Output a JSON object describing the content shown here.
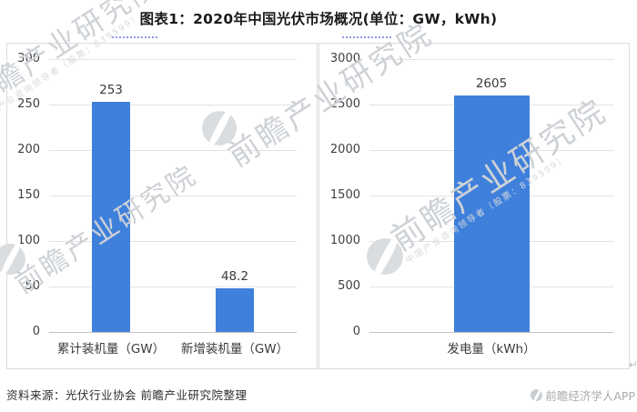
{
  "title": "图表1：2020年中国光伏市场概况(单位：GW，kWh)",
  "source_note": "资料来源：光伏行业协会 前瞻产业研究院整理",
  "footer": {
    "app_credit": "前瞻经济学人APP",
    "return_mark": "↵"
  },
  "watermark": {
    "brand": "前瞻产业研究院",
    "tagline": "中国产业咨询领导者（股票：839599）"
  },
  "colors": {
    "bar": "#3F80DC",
    "gridline": "#e3e3e3",
    "baseline": "#c2c2c2",
    "panel_border": "#dcdcdc",
    "dotted_underline": "#7E86EC"
  },
  "chart_data": [
    {
      "type": "bar",
      "title": "",
      "categories": [
        "累计装机量（GW）",
        "新增装机量（GW）"
      ],
      "values": [
        253,
        48.2
      ],
      "xlabel": "",
      "ylabel": "",
      "ylim": [
        0,
        300
      ],
      "yticks": [
        0,
        50,
        100,
        150,
        200,
        250,
        300
      ],
      "grid": true,
      "legend": "none",
      "bar_color": "#3F80DC",
      "value_labels": true
    },
    {
      "type": "bar",
      "title": "",
      "categories": [
        "发电量（kWh）"
      ],
      "values": [
        2605
      ],
      "xlabel": "",
      "ylabel": "",
      "ylim": [
        0,
        3000
      ],
      "yticks": [
        0,
        500,
        1000,
        1500,
        2000,
        2500,
        3000
      ],
      "grid": true,
      "legend": "none",
      "bar_color": "#3F80DC",
      "value_labels": true
    }
  ]
}
